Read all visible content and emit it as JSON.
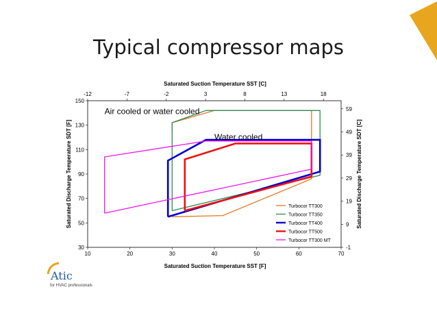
{
  "slide": {
    "title": "Typical compressor maps"
  },
  "logo": {
    "name": "Atic",
    "tagline": "for HVAC professionals"
  },
  "colors": {
    "accent": "#E8A51E",
    "logo_blue": "#1d5a9a"
  },
  "chart_data": {
    "type": "line",
    "xlabel": "Saturated Suction Temperature SST [F]",
    "ylabel": "Saturated Discharge Temperature SDT [F]",
    "x2label": "Saturated Suction Temperature SST [C]",
    "y2label": "Saturated Discharge Temperature SDT [C]",
    "xlim": [
      10,
      70
    ],
    "ylim": [
      30,
      150
    ],
    "x_ticks": [
      10,
      20,
      30,
      40,
      50,
      60,
      70
    ],
    "y_ticks": [
      30,
      50,
      70,
      90,
      110,
      130,
      150
    ],
    "x2_ticks": [
      -12,
      -7,
      -2,
      3,
      8,
      13,
      18
    ],
    "y2_ticks": [
      -1,
      9,
      19,
      29,
      39,
      49,
      59
    ],
    "grid": false,
    "legend_position": "bottom-right",
    "annotations": [
      {
        "text": "Air cooled or water cooled",
        "x": 14,
        "y": 139
      },
      {
        "text": "Water cooled",
        "x": 40,
        "y": 118
      }
    ],
    "series": [
      {
        "name": "Turbocor TT300",
        "color": "#E87722",
        "x": [
          30,
          30,
          40,
          63,
          63,
          42,
          30
        ],
        "y": [
          125,
          132,
          142,
          142,
          86,
          56,
          55
        ]
      },
      {
        "name": "Turbocor TT350",
        "color": "#2E8B57",
        "x": [
          30,
          30,
          38,
          65,
          65,
          30
        ],
        "y": [
          60,
          132,
          142,
          142,
          89,
          60
        ]
      },
      {
        "name": "Turbocor TT400",
        "color": "#0000CC",
        "x": [
          29,
          29,
          38,
          65,
          65,
          29
        ],
        "y": [
          55,
          101,
          118,
          118,
          92,
          55
        ]
      },
      {
        "name": "Turbocor TT500",
        "color": "#EE1111",
        "x": [
          33,
          33,
          45,
          63,
          63,
          33
        ],
        "y": [
          60,
          102,
          115,
          115,
          88,
          60
        ]
      },
      {
        "name": "Turbocor TT300 MT",
        "color": "#EE11EE",
        "x": [
          14,
          14,
          38,
          63,
          63,
          14
        ],
        "y": [
          58,
          104,
          117,
          117,
          94,
          58
        ]
      }
    ]
  }
}
